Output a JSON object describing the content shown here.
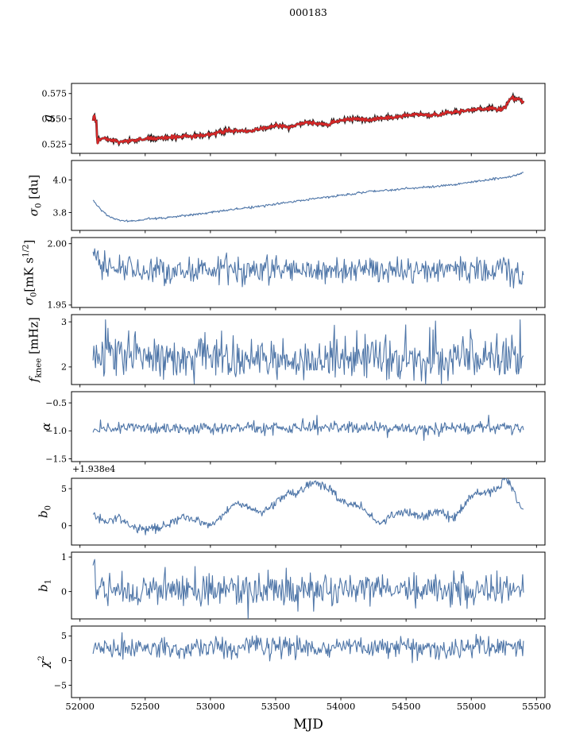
{
  "title": "000183",
  "x_axis": {
    "label": "MJD",
    "range": [
      51935,
      55565
    ],
    "ticks": [
      52000,
      52500,
      53000,
      53500,
      54000,
      54500,
      55000,
      55500
    ],
    "tick_labels": [
      "52000",
      "52500",
      "53000",
      "53500",
      "54000",
      "54500",
      "55000",
      "55500"
    ]
  },
  "colors": {
    "blue": "#4f76a8",
    "red": "#d62728",
    "dark": "#1a1a1a",
    "frame": "#000000"
  },
  "chart_data": [
    {
      "name": "g",
      "type": "line",
      "ylabel": "g",
      "ylabel_segments": [
        {
          "t": "g",
          "i": true
        }
      ],
      "yticks": [
        0.525,
        0.55,
        0.575
      ],
      "ytick_labels": [
        "0.525",
        "0.550",
        "0.575"
      ],
      "ylim": [
        0.516,
        0.585
      ],
      "color": "#d62728",
      "undercolor": "#1a1a1a",
      "line_width": 2.2,
      "n": 650,
      "noise": 0.0009,
      "seed": 11,
      "x_data_range": [
        52100,
        55400
      ],
      "trend": [
        [
          52100,
          0.549
        ],
        [
          52112,
          0.5555
        ],
        [
          52118,
          0.5455
        ],
        [
          52124,
          0.5525
        ],
        [
          52130,
          0.534
        ],
        [
          52136,
          0.5265
        ],
        [
          52144,
          0.5315
        ],
        [
          52152,
          0.5285
        ],
        [
          52160,
          0.531
        ],
        [
          52180,
          0.5305
        ],
        [
          52220,
          0.5295
        ],
        [
          52260,
          0.5285
        ],
        [
          52300,
          0.5275
        ],
        [
          52340,
          0.528
        ],
        [
          52400,
          0.5285
        ],
        [
          52450,
          0.529
        ],
        [
          52500,
          0.5305
        ],
        [
          52550,
          0.531
        ],
        [
          52600,
          0.5312
        ],
        [
          52650,
          0.5308
        ],
        [
          52700,
          0.5318
        ],
        [
          52750,
          0.5322
        ],
        [
          52800,
          0.5328
        ],
        [
          52850,
          0.5325
        ],
        [
          52900,
          0.5335
        ],
        [
          52950,
          0.534
        ],
        [
          53000,
          0.5352
        ],
        [
          53050,
          0.536
        ],
        [
          53100,
          0.5378
        ],
        [
          53150,
          0.5382
        ],
        [
          53200,
          0.5385
        ],
        [
          53250,
          0.5378
        ],
        [
          53300,
          0.5372
        ],
        [
          53350,
          0.5395
        ],
        [
          53400,
          0.5408
        ],
        [
          53450,
          0.5418
        ],
        [
          53500,
          0.5432
        ],
        [
          53550,
          0.5428
        ],
        [
          53600,
          0.5422
        ],
        [
          53650,
          0.5438
        ],
        [
          53700,
          0.5452
        ],
        [
          53750,
          0.5458
        ],
        [
          53800,
          0.5462
        ],
        [
          53850,
          0.5452
        ],
        [
          53900,
          0.5448
        ],
        [
          53950,
          0.5472
        ],
        [
          54000,
          0.5488
        ],
        [
          54050,
          0.5495
        ],
        [
          54100,
          0.5502
        ],
        [
          54150,
          0.5495
        ],
        [
          54200,
          0.549
        ],
        [
          54250,
          0.5498
        ],
        [
          54300,
          0.5512
        ],
        [
          54350,
          0.5508
        ],
        [
          54400,
          0.5515
        ],
        [
          54450,
          0.5528
        ],
        [
          54500,
          0.5535
        ],
        [
          54550,
          0.5542
        ],
        [
          54600,
          0.5548
        ],
        [
          54650,
          0.5538
        ],
        [
          54700,
          0.5532
        ],
        [
          54750,
          0.5545
        ],
        [
          54800,
          0.5558
        ],
        [
          54850,
          0.5562
        ],
        [
          54900,
          0.5572
        ],
        [
          54950,
          0.5578
        ],
        [
          55000,
          0.5588
        ],
        [
          55050,
          0.5598
        ],
        [
          55100,
          0.5592
        ],
        [
          55150,
          0.5608
        ],
        [
          55200,
          0.5598
        ],
        [
          55230,
          0.5588
        ],
        [
          55260,
          0.5618
        ],
        [
          55290,
          0.568
        ],
        [
          55320,
          0.571
        ],
        [
          55340,
          0.569
        ],
        [
          55360,
          0.5705
        ],
        [
          55380,
          0.568
        ],
        [
          55400,
          0.566
        ]
      ]
    },
    {
      "name": "sigma0-du",
      "type": "line",
      "ylabel": "sigma0 [du]",
      "ylabel_segments": [
        {
          "t": "σ",
          "i": true
        },
        {
          "t": "0",
          "sub": true
        },
        {
          "t": " [du]"
        }
      ],
      "yticks": [
        3.8,
        4.0
      ],
      "ytick_labels": [
        "3.8",
        "4.0"
      ],
      "ylim": [
        3.69,
        4.12
      ],
      "color": "#4f76a8",
      "line_width": 1.1,
      "n": 600,
      "noise": 0.0035,
      "seed": 22,
      "x_data_range": [
        52100,
        55400
      ],
      "trend": [
        [
          52100,
          3.875
        ],
        [
          52130,
          3.845
        ],
        [
          52160,
          3.82
        ],
        [
          52200,
          3.79
        ],
        [
          52250,
          3.765
        ],
        [
          52300,
          3.752
        ],
        [
          52350,
          3.748
        ],
        [
          52400,
          3.75
        ],
        [
          52450,
          3.752
        ],
        [
          52500,
          3.758
        ],
        [
          52600,
          3.765
        ],
        [
          52700,
          3.772
        ],
        [
          52800,
          3.782
        ],
        [
          52900,
          3.79
        ],
        [
          53000,
          3.8
        ],
        [
          53100,
          3.812
        ],
        [
          53200,
          3.82
        ],
        [
          53300,
          3.83
        ],
        [
          53400,
          3.84
        ],
        [
          53500,
          3.852
        ],
        [
          53600,
          3.862
        ],
        [
          53700,
          3.875
        ],
        [
          53800,
          3.885
        ],
        [
          53900,
          3.895
        ],
        [
          54000,
          3.905
        ],
        [
          54100,
          3.915
        ],
        [
          54200,
          3.928
        ],
        [
          54300,
          3.935
        ],
        [
          54400,
          3.94
        ],
        [
          54500,
          3.948
        ],
        [
          54600,
          3.952
        ],
        [
          54700,
          3.958
        ],
        [
          54800,
          3.965
        ],
        [
          54900,
          3.975
        ],
        [
          55000,
          3.988
        ],
        [
          55100,
          3.998
        ],
        [
          55200,
          4.01
        ],
        [
          55300,
          4.022
        ],
        [
          55350,
          4.03
        ],
        [
          55400,
          4.048
        ]
      ]
    },
    {
      "name": "sigma0-mk",
      "type": "line",
      "ylabel": "sigma0 [mK s^1/2]",
      "ylabel_segments": [
        {
          "t": "σ",
          "i": true
        },
        {
          "t": "0",
          "sub": true
        },
        {
          "t": "[mK s"
        },
        {
          "t": "1/2",
          "sup": true
        },
        {
          "t": "]"
        }
      ],
      "yticks": [
        1.95,
        2.0
      ],
      "ytick_labels": [
        "1.95",
        "2.00"
      ],
      "ylim": [
        1.948,
        2.005
      ],
      "color": "#4f76a8",
      "line_width": 1.1,
      "n": 520,
      "noise": 0.0055,
      "seed": 33,
      "x_data_range": [
        52100,
        55400
      ],
      "trend": [
        [
          52100,
          1.995
        ],
        [
          52140,
          1.988
        ],
        [
          52200,
          1.982
        ],
        [
          52300,
          1.979
        ],
        [
          52600,
          1.978
        ],
        [
          53000,
          1.979
        ],
        [
          53500,
          1.978
        ],
        [
          54000,
          1.979
        ],
        [
          54500,
          1.978
        ],
        [
          55000,
          1.979
        ],
        [
          55250,
          1.98
        ],
        [
          55350,
          1.974
        ],
        [
          55400,
          1.97
        ]
      ]
    },
    {
      "name": "f-knee",
      "type": "line",
      "ylabel": "f_knee [mHz]",
      "ylabel_segments": [
        {
          "t": "f",
          "i": true
        },
        {
          "t": "knee",
          "sub": true
        },
        {
          "t": " [mHz]"
        }
      ],
      "yticks": [
        2,
        3
      ],
      "ytick_labels": [
        "2",
        "3"
      ],
      "ylim": [
        1.61,
        3.16
      ],
      "color": "#4f76a8",
      "line_width": 1.1,
      "n": 520,
      "noise": 0.22,
      "seed": 44,
      "spikes": {
        "p": 0.07,
        "amp": 0.45,
        "sign": 1
      },
      "x_data_range": [
        52100,
        55400
      ],
      "trend": [
        [
          52100,
          2.35
        ],
        [
          52200,
          2.3
        ],
        [
          52400,
          2.25
        ],
        [
          52700,
          2.2
        ],
        [
          53000,
          2.2
        ],
        [
          53500,
          2.15
        ],
        [
          54000,
          2.15
        ],
        [
          54500,
          2.12
        ],
        [
          55000,
          2.15
        ],
        [
          55400,
          2.15
        ]
      ]
    },
    {
      "name": "alpha",
      "type": "line",
      "ylabel": "alpha",
      "ylabel_segments": [
        {
          "t": "α",
          "i": true
        }
      ],
      "yticks": [
        -1.5,
        -1.0,
        -0.5
      ],
      "ytick_labels": [
        "−1.5",
        "−1.0",
        "−0.5"
      ],
      "ylim": [
        -1.55,
        -0.3
      ],
      "color": "#4f76a8",
      "line_width": 1.1,
      "n": 520,
      "noise": 0.05,
      "seed": 55,
      "spikes": {
        "p": 0.04,
        "amp": 0.12,
        "sign": 0
      },
      "x_data_range": [
        52100,
        55400
      ],
      "trend": [
        [
          52100,
          -0.95
        ],
        [
          53000,
          -0.952
        ],
        [
          54000,
          -0.948
        ],
        [
          55400,
          -0.95
        ]
      ]
    },
    {
      "name": "b0",
      "type": "line",
      "ylabel": "b0",
      "offset_text": "+1.938e4",
      "ylabel_segments": [
        {
          "t": "b",
          "i": true
        },
        {
          "t": "0",
          "sub": true
        }
      ],
      "yticks": [
        0,
        5
      ],
      "ytick_labels": [
        "0",
        "5"
      ],
      "ylim": [
        -2.6,
        6.4
      ],
      "color": "#4f76a8",
      "line_width": 1.1,
      "n": 600,
      "noise": 0.28,
      "seed": 66,
      "x_data_range": [
        52100,
        55400
      ],
      "trend": [
        [
          52100,
          1.6
        ],
        [
          52150,
          0.9
        ],
        [
          52200,
          0.45
        ],
        [
          52250,
          0.75
        ],
        [
          52300,
          1.05
        ],
        [
          52350,
          0.5
        ],
        [
          52400,
          -0.1
        ],
        [
          52450,
          -0.45
        ],
        [
          52500,
          -0.55
        ],
        [
          52600,
          -0.35
        ],
        [
          52700,
          0.25
        ],
        [
          52750,
          0.8
        ],
        [
          52800,
          1.15
        ],
        [
          52850,
          0.95
        ],
        [
          52900,
          0.65
        ],
        [
          52950,
          0.35
        ],
        [
          53000,
          0.15
        ],
        [
          53050,
          0.7
        ],
        [
          53100,
          1.5
        ],
        [
          53150,
          2.4
        ],
        [
          53200,
          3.2
        ],
        [
          53250,
          2.9
        ],
        [
          53300,
          2.45
        ],
        [
          53350,
          1.95
        ],
        [
          53400,
          1.75
        ],
        [
          53450,
          2.3
        ],
        [
          53500,
          3.0
        ],
        [
          53550,
          3.8
        ],
        [
          53600,
          4.6
        ],
        [
          53650,
          4.3
        ],
        [
          53700,
          4.9
        ],
        [
          53750,
          5.7
        ],
        [
          53800,
          5.95
        ],
        [
          53850,
          5.6
        ],
        [
          53900,
          5.0
        ],
        [
          53950,
          4.4
        ],
        [
          54000,
          3.4
        ],
        [
          54050,
          2.9
        ],
        [
          54100,
          2.85
        ],
        [
          54150,
          2.6
        ],
        [
          54200,
          1.8
        ],
        [
          54250,
          0.95
        ],
        [
          54300,
          0.55
        ],
        [
          54350,
          0.75
        ],
        [
          54400,
          1.45
        ],
        [
          54450,
          1.7
        ],
        [
          54500,
          1.85
        ],
        [
          54550,
          1.6
        ],
        [
          54600,
          1.3
        ],
        [
          54650,
          1.15
        ],
        [
          54700,
          1.7
        ],
        [
          54750,
          2.0
        ],
        [
          54800,
          1.45
        ],
        [
          54850,
          0.85
        ],
        [
          54900,
          1.6
        ],
        [
          54950,
          3.0
        ],
        [
          55000,
          3.9
        ],
        [
          55050,
          4.5
        ],
        [
          55100,
          4.25
        ],
        [
          55150,
          4.6
        ],
        [
          55200,
          5.0
        ],
        [
          55250,
          6.2
        ],
        [
          55300,
          5.6
        ],
        [
          55350,
          3.6
        ],
        [
          55400,
          2.1
        ]
      ]
    },
    {
      "name": "b1",
      "type": "line",
      "ylabel": "b1",
      "ylabel_segments": [
        {
          "t": "b",
          "i": true
        },
        {
          "t": "1",
          "sub": true
        }
      ],
      "yticks": [
        0,
        1
      ],
      "ytick_labels": [
        "0",
        "1"
      ],
      "ylim": [
        -0.79,
        1.14
      ],
      "color": "#4f76a8",
      "line_width": 1.1,
      "n": 520,
      "noise": 0.22,
      "seed": 77,
      "spikes": {
        "p": 0.05,
        "amp": 0.35,
        "sign": 0
      },
      "x_data_range": [
        52100,
        55400
      ],
      "trend": [
        [
          52100,
          0.95
        ],
        [
          52112,
          0.5
        ],
        [
          52125,
          0.05
        ],
        [
          53000,
          0.03
        ],
        [
          54000,
          0.05
        ],
        [
          55000,
          0.03
        ],
        [
          55400,
          0.02
        ]
      ]
    },
    {
      "name": "chi2",
      "type": "line",
      "ylabel": "chi^2",
      "ylabel_segments": [
        {
          "t": "χ",
          "i": true
        },
        {
          "t": "2",
          "sup": true
        }
      ],
      "yticks": [
        -5,
        0,
        5
      ],
      "ytick_labels": [
        "−5",
        "0",
        "5"
      ],
      "ylim": [
        -7.5,
        7.0
      ],
      "color": "#4f76a8",
      "line_width": 1.1,
      "n": 520,
      "noise": 1.0,
      "seed": 88,
      "spikes": {
        "p": 0.04,
        "amp": 1.6,
        "sign": 0
      },
      "x_data_range": [
        52100,
        55400
      ],
      "trend": [
        [
          52100,
          2.9
        ],
        [
          52300,
          2.4
        ],
        [
          52500,
          2.8
        ],
        [
          52700,
          2.3
        ],
        [
          52900,
          2.7
        ],
        [
          53100,
          2.4
        ],
        [
          53300,
          2.9
        ],
        [
          53500,
          2.5
        ],
        [
          53700,
          3.0
        ],
        [
          53900,
          2.4
        ],
        [
          54100,
          2.8
        ],
        [
          54300,
          2.3
        ],
        [
          54500,
          2.8
        ],
        [
          54700,
          2.4
        ],
        [
          54900,
          2.7
        ],
        [
          55100,
          2.9
        ],
        [
          55300,
          3.0
        ],
        [
          55400,
          3.1
        ]
      ]
    }
  ]
}
